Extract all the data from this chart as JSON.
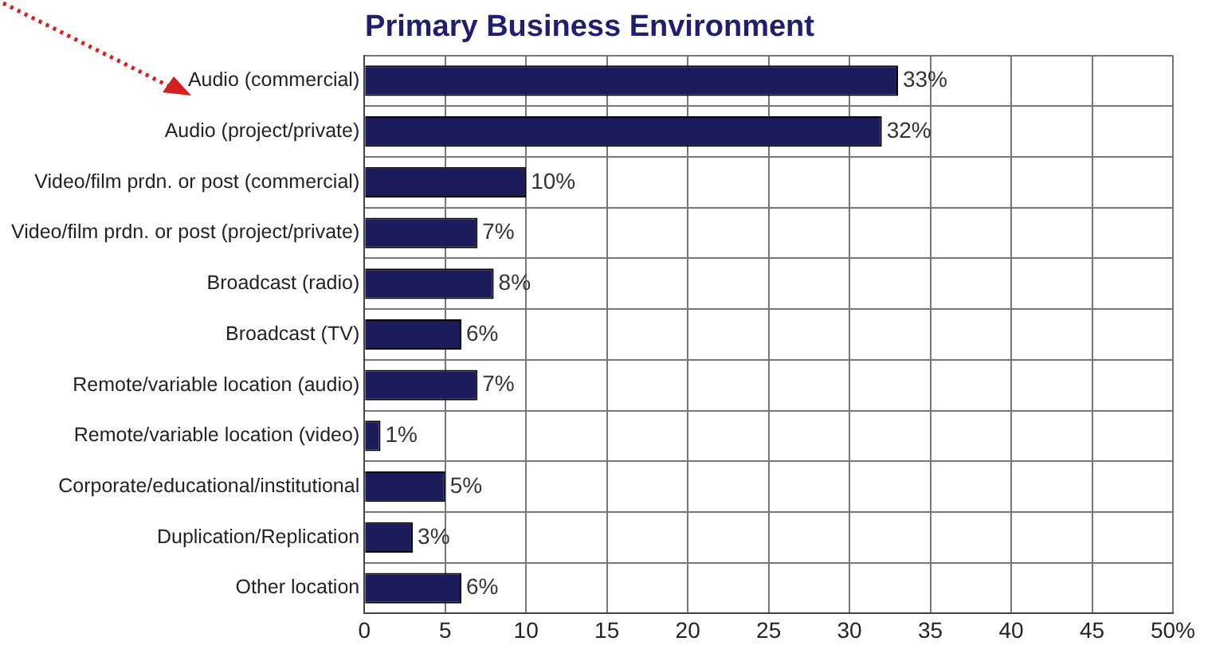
{
  "chart_data": {
    "type": "bar",
    "orientation": "horizontal",
    "title": "Primary Business Environment",
    "categories": [
      "Audio (commercial)",
      "Audio (project/private)",
      "Video/film prdn. or post (commercial)",
      "Video/film prdn. or post (project/private)",
      "Broadcast (radio)",
      "Broadcast (TV)",
      "Remote/variable location (audio)",
      "Remote/variable location (video)",
      "Corporate/educational/institutional",
      "Duplication/Replication",
      "Other location"
    ],
    "values": [
      33,
      32,
      10,
      7,
      8,
      6,
      7,
      1,
      5,
      3,
      6
    ],
    "value_labels": [
      "33%",
      "32%",
      "10%",
      "7%",
      "8%",
      "6%",
      "7%",
      "1%",
      "5%",
      "3%",
      "6%"
    ],
    "color": "#1c1c5c",
    "xlim": [
      0,
      50
    ],
    "xticks": [
      0,
      5,
      10,
      15,
      20,
      25,
      30,
      35,
      40,
      45,
      {
        "value": 50,
        "label": "50%"
      }
    ],
    "grid": true,
    "legend": false
  }
}
